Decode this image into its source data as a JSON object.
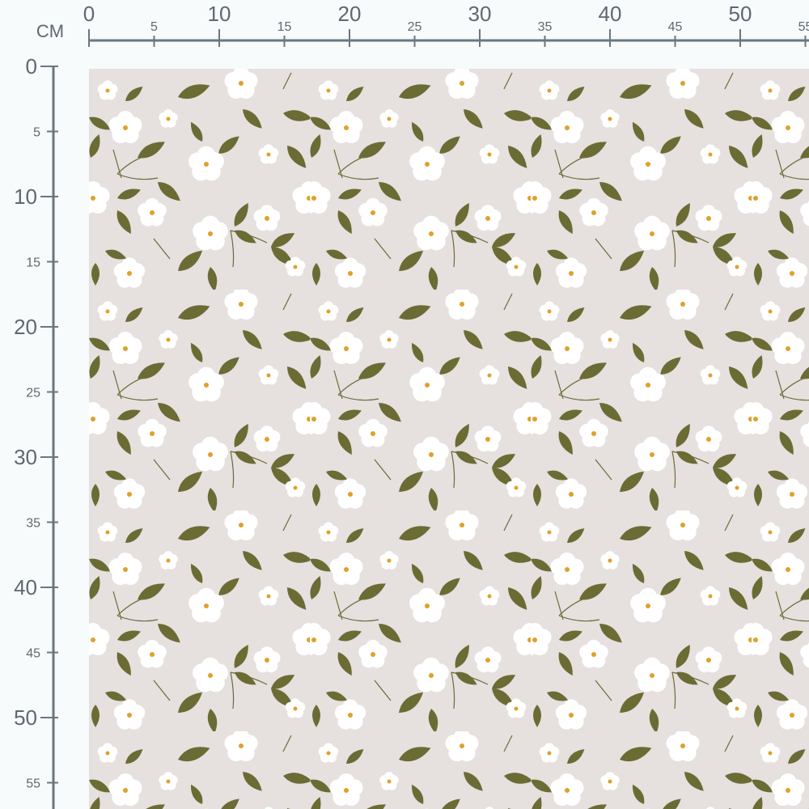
{
  "ruler": {
    "unit_label": "CM",
    "top_labels": [
      "0",
      "5",
      "10",
      "15",
      "20",
      "25",
      "30",
      "35",
      "40",
      "45",
      "50",
      "55"
    ],
    "left_labels": [
      "0",
      "5",
      "10",
      "15",
      "20",
      "25",
      "30",
      "35",
      "40",
      "45",
      "50",
      "55"
    ],
    "color": "#6b7680"
  },
  "fabric": {
    "pattern": "white-flowers-olive-leaves",
    "background_color": "#e6e0df",
    "leaf_color": "#6b6b34",
    "petal_color": "#ffffff",
    "flower_center_color": "#e0a02a"
  }
}
